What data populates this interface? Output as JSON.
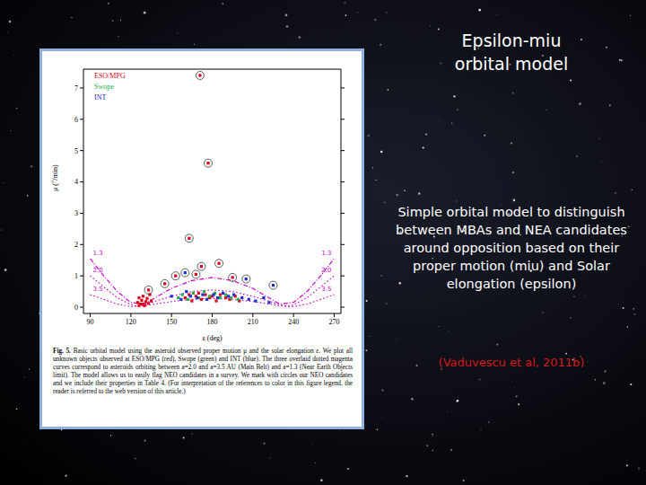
{
  "slide": {
    "title": [
      "Epsilon-miu",
      "orbital model"
    ],
    "text": "Simple orbital model to distinguish between MBAs and NEA candidates around opposition based on their proper motion (miu) and Solar elongation (epsilon)",
    "citation": "(Vaduvescu et al, 2011b)"
  },
  "chart_data": {
    "type": "scatter",
    "x_label": "ε (deg)",
    "y_label": "μ (\"/min)",
    "xlim": [
      85,
      275
    ],
    "xticks": [
      90,
      120,
      150,
      180,
      210,
      240,
      270
    ],
    "ylim": [
      -0.2,
      7.6
    ],
    "yticks": [
      0,
      1,
      2,
      3,
      4,
      5,
      6,
      7
    ],
    "caption_label": "Fig. 5.",
    "caption": "Basic orbital model using the asteroid observed proper motion μ and the solar elongation ε. We plot all unknown objects observed at ESO/MPG (red), Swope (green) and INT (blue). The three overlaid dotted magenta curves correspond to asteroids orbiting between a=2.0 and a=3.5 AU (Main Belt) and a=1.3 (Near Earth Objects limit). The model allows us to easily flag NEO candidates in a survey. We mark with circles our NEO candidates and we include their properties in Table 4. (For interpretation of the references to color in this figure legend, the reader is referred to the web version of this article.)",
    "legend": "upper left",
    "series": [
      {
        "name": "ESO/MPG",
        "color": "#e0001a",
        "marker": "square",
        "x": [
          125,
          126,
          127,
          128,
          129,
          130,
          131,
          132,
          133,
          134,
          126,
          129,
          135,
          171,
          177,
          163,
          172,
          185,
          153,
          168,
          195,
          133,
          145,
          160,
          163,
          165,
          168,
          170,
          172,
          175,
          178,
          180,
          183,
          186,
          190,
          193,
          197,
          200
        ],
        "values": [
          0.15,
          0.3,
          0.1,
          0.22,
          0.35,
          0.05,
          0.18,
          0.28,
          0.12,
          0.4,
          0.05,
          0.1,
          0.2,
          7.4,
          4.6,
          2.2,
          1.3,
          1.4,
          1.0,
          1.05,
          0.95,
          0.55,
          0.75,
          0.3,
          0.4,
          0.2,
          0.35,
          0.45,
          0.25,
          0.4,
          0.3,
          0.35,
          0.2,
          0.4,
          0.3,
          0.25,
          0.35,
          0.2
        ],
        "circled": [
          false,
          false,
          false,
          false,
          false,
          false,
          false,
          false,
          false,
          false,
          false,
          false,
          false,
          true,
          true,
          true,
          true,
          true,
          true,
          true,
          true,
          true,
          true,
          false,
          false,
          false,
          false,
          false,
          false,
          false,
          false,
          false,
          false,
          false,
          false,
          false,
          false,
          false
        ]
      },
      {
        "name": "Swope",
        "color": "#22b04a",
        "marker": "square",
        "x": [
          155,
          158,
          162,
          166,
          170,
          174,
          178,
          182,
          186,
          190,
          194,
          199
        ],
        "values": [
          0.3,
          0.4,
          0.25,
          0.45,
          0.3,
          0.5,
          0.35,
          0.45,
          0.3,
          0.4,
          0.3,
          0.25
        ],
        "circled": [
          false,
          false,
          false,
          false,
          false,
          false,
          false,
          false,
          false,
          false,
          false,
          false
        ]
      },
      {
        "name": "INT",
        "color": "#1a2fd0",
        "marker": "square",
        "x": [
          150,
          157,
          161,
          164,
          169,
          173,
          176,
          181,
          184,
          188,
          192,
          196,
          202,
          207,
          212,
          218,
          222,
          160,
          205,
          225
        ],
        "values": [
          0.35,
          0.25,
          0.5,
          0.35,
          0.3,
          0.4,
          0.25,
          0.4,
          0.3,
          0.45,
          0.35,
          0.4,
          0.3,
          0.25,
          0.2,
          0.3,
          0.15,
          1.1,
          0.9,
          0.7
        ],
        "circled": [
          false,
          false,
          false,
          false,
          false,
          false,
          false,
          false,
          false,
          false,
          false,
          false,
          false,
          false,
          false,
          false,
          false,
          true,
          true,
          true
        ]
      },
      {
        "name": "1.3",
        "type": "line",
        "line_style": "dashdot",
        "color": "#cc00cc",
        "x": [
          90,
          100,
          110,
          120,
          130,
          140,
          150,
          165,
          180,
          195,
          210,
          220,
          230,
          240,
          250,
          260,
          270
        ],
        "values": [
          1.55,
          1.0,
          0.5,
          0.15,
          0.1,
          0.35,
          0.6,
          0.85,
          0.95,
          0.85,
          0.6,
          0.35,
          0.1,
          0.15,
          0.5,
          1.0,
          1.55
        ]
      },
      {
        "name": "2.0",
        "type": "line",
        "line_style": "dotted",
        "color": "#cc00cc",
        "x": [
          90,
          100,
          110,
          120,
          125,
          135,
          150,
          165,
          180,
          195,
          210,
          225,
          235,
          240,
          250,
          260,
          270
        ],
        "values": [
          1.0,
          0.65,
          0.3,
          0.08,
          0.02,
          0.15,
          0.35,
          0.5,
          0.55,
          0.5,
          0.35,
          0.15,
          0.02,
          0.08,
          0.3,
          0.65,
          1.0
        ]
      },
      {
        "name": "3.5",
        "type": "line",
        "line_style": "dotted",
        "color": "#cc00cc",
        "x": [
          90,
          100,
          110,
          120,
          130,
          150,
          165,
          180,
          195,
          210,
          230,
          240,
          250,
          260,
          270
        ],
        "values": [
          0.4,
          0.25,
          0.1,
          0.02,
          0.05,
          0.18,
          0.25,
          0.28,
          0.25,
          0.18,
          0.05,
          0.02,
          0.1,
          0.25,
          0.4
        ]
      }
    ]
  }
}
